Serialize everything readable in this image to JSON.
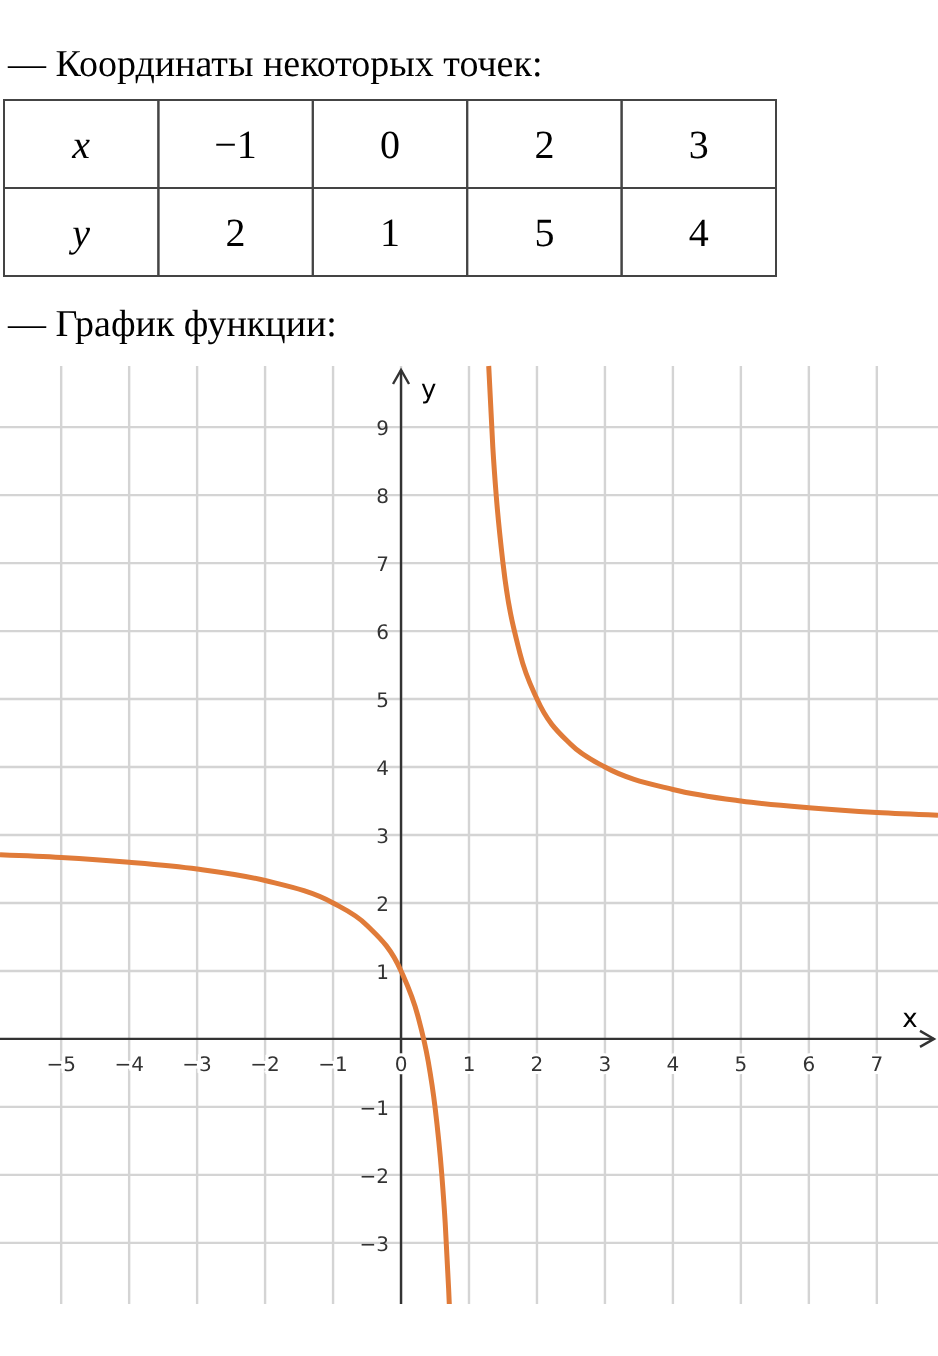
{
  "chart_data": [
    {
      "type": "other",
      "title": "— Координаты некоторых точек:",
      "annotations": [
        "x",
        "−1",
        "0",
        "2",
        "3",
        "y",
        "2",
        "1",
        "5",
        "4"
      ]
    },
    {
      "type": "line",
      "title": "— График функции:",
      "xlabel": "x",
      "ylabel": "y",
      "xlim": [
        -5.9,
        7.9
      ],
      "ylim": [
        -3.9,
        9.9
      ],
      "xticks": [
        -5,
        -4,
        -3,
        -2,
        -1,
        0,
        1,
        2,
        3,
        4,
        5,
        6,
        7
      ],
      "yticks": [
        -3,
        -2,
        -1,
        1,
        2,
        3,
        4,
        5,
        6,
        7,
        8,
        9
      ],
      "grid": true,
      "line_style": "solid",
      "marker": "none",
      "series": [
        {
          "color": "#e07b39",
          "x": [
            -5.9,
            -5,
            -4,
            -3,
            -2,
            -1,
            -0.5,
            0,
            0.25,
            0.4,
            0.5,
            0.6,
            0.65,
            0.7,
            0.71
          ],
          "values": [
            2.71,
            2.67,
            2.6,
            2.5,
            2.33,
            2,
            1.67,
            1,
            0.33,
            -0.33,
            -1,
            -2,
            -2.71,
            -3.67,
            -3.9
          ]
        },
        {
          "color": "#e07b39",
          "x": [
            1.29,
            1.35,
            1.4,
            1.5,
            1.75,
            2,
            2.5,
            3,
            4,
            5,
            6,
            7,
            7.9
          ],
          "values": [
            9.9,
            8.71,
            8,
            7,
            5.67,
            5,
            4.33,
            4,
            3.67,
            3.5,
            3.4,
            3.33,
            3.29
          ]
        }
      ]
    }
  ]
}
